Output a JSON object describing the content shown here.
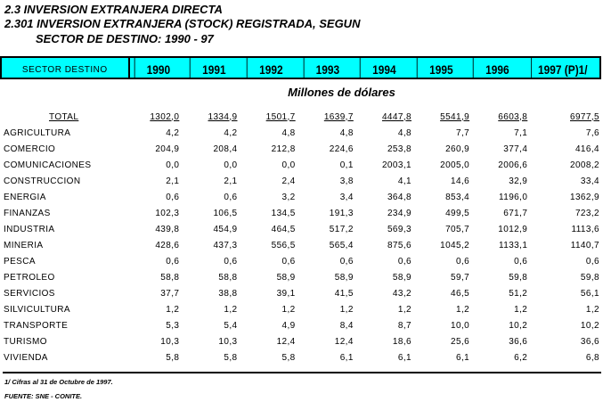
{
  "title": {
    "line1": "2.3 INVERSION EXTRANJERA DIRECTA",
    "line2": "2.301 INVERSION EXTRANJERA (STOCK) REGISTRADA, SEGUN",
    "line3": "SECTOR DE DESTINO: 1990 - 97"
  },
  "header": {
    "sector": "SECTOR DESTINO",
    "years": [
      "1990",
      "1991",
      "1992",
      "1993",
      "1994",
      "1995",
      "1996",
      "1997 (P)1/"
    ]
  },
  "unit": "Millones de dólares",
  "total": {
    "label": "TOTAL",
    "values": [
      "1302,0",
      "1334,9",
      "1501,7",
      "1639,7",
      "4447,8",
      "5541,9",
      "6603,8",
      "6977,5"
    ]
  },
  "rows": [
    {
      "label": "AGRICULTURA",
      "values": [
        "4,2",
        "4,2",
        "4,8",
        "4,8",
        "4,8",
        "7,7",
        "7,1",
        "7,6"
      ]
    },
    {
      "label": "COMERCIO",
      "values": [
        "204,9",
        "208,4",
        "212,8",
        "224,6",
        "253,8",
        "260,9",
        "377,4",
        "416,4"
      ]
    },
    {
      "label": "COMUNICACIONES",
      "values": [
        "0,0",
        "0,0",
        "0,0",
        "0,1",
        "2003,1",
        "2005,0",
        "2006,6",
        "2008,2"
      ]
    },
    {
      "label": "CONSTRUCCION",
      "values": [
        "2,1",
        "2,1",
        "2,4",
        "3,8",
        "4,1",
        "14,6",
        "32,9",
        "33,4"
      ]
    },
    {
      "label": "ENERGIA",
      "values": [
        "0,6",
        "0,6",
        "3,2",
        "3,4",
        "364,8",
        "853,4",
        "1196,0",
        "1362,9"
      ]
    },
    {
      "label": "FINANZAS",
      "values": [
        "102,3",
        "106,5",
        "134,5",
        "191,3",
        "234,9",
        "499,5",
        "671,7",
        "723,2"
      ]
    },
    {
      "label": "INDUSTRIA",
      "values": [
        "439,8",
        "454,9",
        "464,5",
        "517,2",
        "569,3",
        "705,7",
        "1012,9",
        "1113,6"
      ]
    },
    {
      "label": "MINERIA",
      "values": [
        "428,6",
        "437,3",
        "556,5",
        "565,4",
        "875,6",
        "1045,2",
        "1133,1",
        "1140,7"
      ]
    },
    {
      "label": "PESCA",
      "values": [
        "0,6",
        "0,6",
        "0,6",
        "0,6",
        "0,6",
        "0,6",
        "0,6",
        "0,6"
      ]
    },
    {
      "label": "PETROLEO",
      "values": [
        "58,8",
        "58,8",
        "58,9",
        "58,9",
        "58,9",
        "59,7",
        "59,8",
        "59,8"
      ]
    },
    {
      "label": "SERVICIOS",
      "values": [
        "37,7",
        "38,8",
        "39,1",
        "41,5",
        "43,2",
        "46,5",
        "51,2",
        "56,1"
      ]
    },
    {
      "label": "SILVICULTURA",
      "values": [
        "1,2",
        "1,2",
        "1,2",
        "1,2",
        "1,2",
        "1,2",
        "1,2",
        "1,2"
      ]
    },
    {
      "label": "TRANSPORTE",
      "values": [
        "5,3",
        "5,4",
        "4,9",
        "8,4",
        "8,7",
        "10,0",
        "10,2",
        "10,2"
      ]
    },
    {
      "label": "TURISMO",
      "values": [
        "10,3",
        "10,3",
        "12,4",
        "12,4",
        "18,6",
        "25,6",
        "36,6",
        "36,6"
      ]
    },
    {
      "label": "VIVIENDA",
      "values": [
        "5,8",
        "5,8",
        "5,8",
        "6,1",
        "6,1",
        "6,1",
        "6,2",
        "6,8"
      ]
    }
  ],
  "footnotes": {
    "note": "1/ Cifras al 31 de Octubre  de 1997.",
    "source": "FUENTE: SNE - CONITE."
  }
}
